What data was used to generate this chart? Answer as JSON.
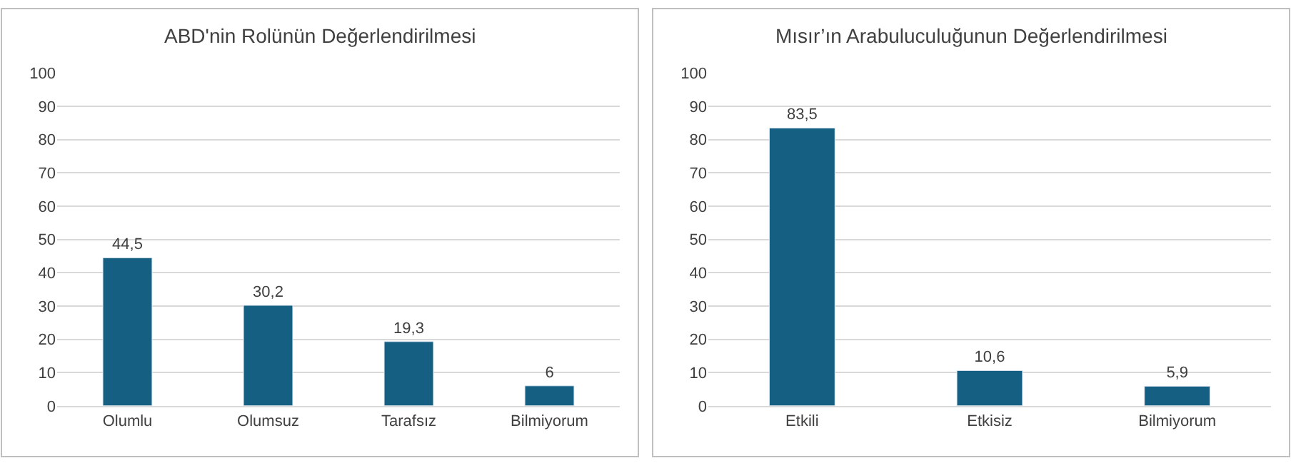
{
  "chart_data": [
    {
      "type": "bar",
      "title": "ABD'nin Rolünün Değerlendirilmesi",
      "categories": [
        "Olumlu",
        "Olumsuz",
        "Tarafsız",
        "Bilmiyorum"
      ],
      "values": [
        44.5,
        30.2,
        19.3,
        6
      ],
      "value_labels": [
        "44,5",
        "30,2",
        "19,3",
        "6"
      ],
      "color": "#156082",
      "ylim": [
        0,
        100
      ],
      "yticks": [
        0,
        10,
        20,
        30,
        40,
        50,
        60,
        70,
        80,
        90,
        100
      ],
      "grid": "y"
    },
    {
      "type": "bar",
      "title": "Mısır’ın Arabuluculuğunun Değerlendirilmesi",
      "categories": [
        "Etkili",
        "Etkisiz",
        "Bilmiyorum"
      ],
      "values": [
        83.5,
        10.6,
        5.9
      ],
      "value_labels": [
        "83,5",
        "10,6",
        "5,9"
      ],
      "color": "#156082",
      "ylim": [
        0,
        100
      ],
      "yticks": [
        0,
        10,
        20,
        30,
        40,
        50,
        60,
        70,
        80,
        90,
        100
      ],
      "grid": "y"
    }
  ]
}
